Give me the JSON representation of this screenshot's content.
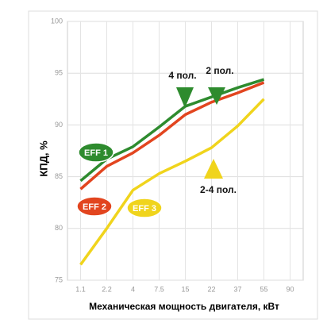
{
  "chart_data": {
    "type": "line",
    "categories": [
      "1.1",
      "2.2",
      "4",
      "7.5",
      "15",
      "22",
      "37",
      "55",
      "90"
    ],
    "series": [
      {
        "name": "EFF 1",
        "color": "#2e8b2e",
        "values": [
          84.6,
          86.7,
          87.9,
          89.8,
          91.8,
          92.7,
          93.6,
          94.4,
          null
        ]
      },
      {
        "name": "EFF 2",
        "color": "#e2451f",
        "values": [
          83.8,
          86.0,
          87.3,
          89.0,
          91.0,
          92.2,
          93.1,
          94.1,
          null
        ]
      },
      {
        "name": "EFF 3",
        "color": "#f0d41c",
        "values": [
          76.5,
          80.0,
          83.7,
          85.3,
          86.5,
          87.8,
          89.9,
          92.5,
          null
        ]
      }
    ],
    "ylim": [
      75,
      100
    ],
    "yticks": [
      75,
      80,
      85,
      90,
      95,
      100
    ],
    "grid": true,
    "ylabel": "КПД, %",
    "xlabel": "Механическая мощность двигателя, кВт",
    "annotations": [
      {
        "text": "4 пол."
      },
      {
        "text": "2 пол."
      },
      {
        "text": "2-4 пол."
      }
    ]
  }
}
